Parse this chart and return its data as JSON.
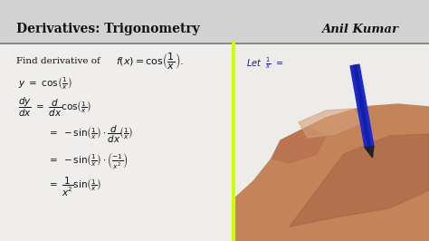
{
  "bg_color": "#c8c8c8",
  "header_bg": "#d2d2d2",
  "body_bg": "#f0eeec",
  "header_text": "Derivatives: Trigonometry",
  "header_author": "Anil Kumar",
  "header_line_color": "#888888",
  "text_color": "#111111",
  "highlight_line_color": "#ccff00",
  "figsize": [
    4.74,
    2.66
  ],
  "dpi": 100,
  "hand_colors": {
    "skin_main": "#c4845a",
    "skin_dark": "#a06040",
    "skin_light": "#d4a07a",
    "thumb": "#b87050",
    "pen_body": "#1a2acc",
    "pen_dark": "#0d1680",
    "pen_tip": "#222222",
    "bg_right": "#e8e6e2"
  }
}
